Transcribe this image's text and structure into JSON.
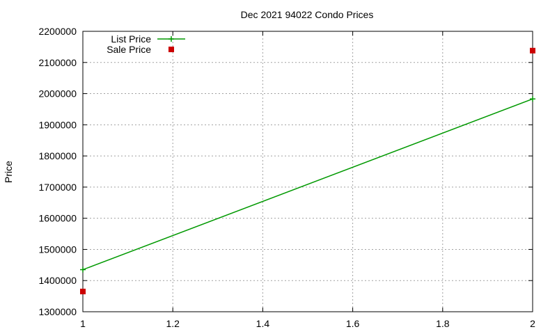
{
  "chart_data": {
    "type": "line",
    "title": "Dec 2021 94022 Condo Prices",
    "xlabel": "",
    "ylabel": "Price",
    "xlim": [
      1,
      2
    ],
    "ylim": [
      1300000,
      2200000
    ],
    "x_ticks": [
      "1",
      "1.2",
      "1.4",
      "1.6",
      "1.8",
      "2"
    ],
    "y_ticks": [
      "1300000",
      "1400000",
      "1500000",
      "1600000",
      "1700000",
      "1800000",
      "1900000",
      "2000000",
      "2100000",
      "2200000"
    ],
    "grid": true,
    "legend_position": "top-left",
    "series": [
      {
        "name": "List Price",
        "style": "line-with-plus-markers",
        "color": "#009900",
        "x": [
          1,
          2
        ],
        "y": [
          1435000,
          1983000
        ]
      },
      {
        "name": "Sale Price",
        "style": "square-markers",
        "color": "#cc0000",
        "x": [
          1,
          2
        ],
        "y": [
          1365000,
          2138000
        ]
      }
    ]
  }
}
